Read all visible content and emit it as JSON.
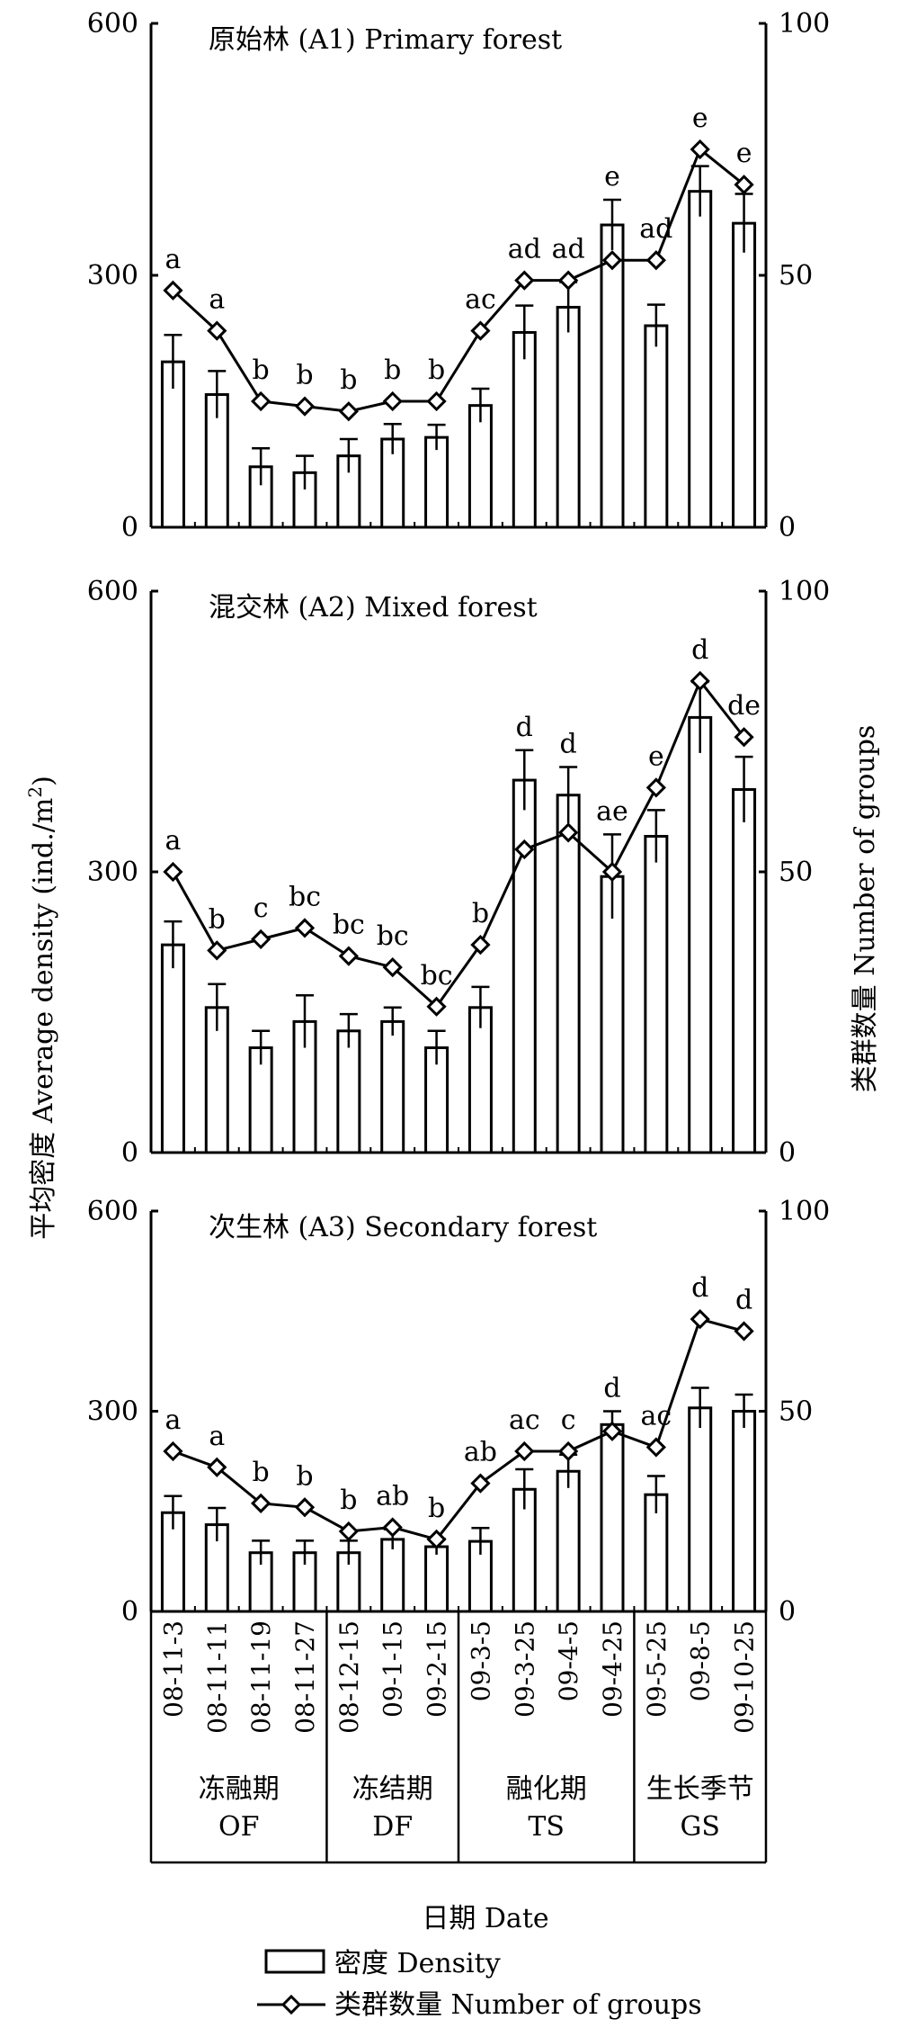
{
  "figure": {
    "left_axis_label": "平均密度 Average density (ind./m",
    "left_axis_label_sup": "2",
    "left_axis_label_end": ")",
    "right_axis_label": "类群数量 Number of groups",
    "x_axis_label": "日期 Date",
    "legend": {
      "density": "密度 Density",
      "groups": "类群数量 Number of groups"
    },
    "periods": [
      {
        "cn": "冻融期",
        "en": "OF"
      },
      {
        "cn": "冻结期",
        "en": "DF"
      },
      {
        "cn": "融化期",
        "en": "TS"
      },
      {
        "cn": "生长季节",
        "en": "GS"
      }
    ],
    "period_boundaries": [
      4,
      7,
      11
    ]
  },
  "chart_data": [
    {
      "type": "bar",
      "title": "原始林 (A1) Primary forest",
      "categories": [
        "08-11-3",
        "08-11-11",
        "08-11-19",
        "08-11-27",
        "08-12-15",
        "09-1-15",
        "09-2-15",
        "09-3-5",
        "09-3-25",
        "09-4-5",
        "09-4-25",
        "09-5-25",
        "09-8-5",
        "09-10-25"
      ],
      "left_ylim": [
        0,
        600
      ],
      "left_ticks": [
        "0",
        "300",
        "600"
      ],
      "right_ylim": [
        0,
        100
      ],
      "right_ticks": [
        "0",
        "50",
        "100"
      ],
      "series": [
        {
          "name": "密度 Density",
          "axis": "left",
          "kind": "bar",
          "values": [
            197,
            158,
            72,
            65,
            85,
            105,
            107,
            145,
            232,
            262,
            360,
            240,
            400,
            362
          ],
          "errors": [
            32,
            28,
            22,
            20,
            20,
            18,
            15,
            20,
            32,
            30,
            30,
            25,
            30,
            35
          ]
        },
        {
          "name": "类群数量 Number of groups",
          "axis": "right",
          "kind": "line",
          "values": [
            47,
            39,
            25,
            24,
            23,
            25,
            25,
            39,
            49,
            49,
            53,
            53,
            75,
            68
          ]
        }
      ],
      "letters": [
        "a",
        "a",
        "b",
        "b",
        "b",
        "b",
        "b",
        "ac",
        "ad",
        "ad",
        "e",
        "ad",
        "e",
        "e"
      ]
    },
    {
      "type": "bar",
      "title": "混交林 (A2) Mixed forest",
      "categories": [
        "08-11-3",
        "08-11-11",
        "08-11-19",
        "08-11-27",
        "08-12-15",
        "09-1-15",
        "09-2-15",
        "09-3-5",
        "09-3-25",
        "09-4-5",
        "09-4-25",
        "09-5-25",
        "09-8-5",
        "09-10-25"
      ],
      "left_ylim": [
        0,
        600
      ],
      "left_ticks": [
        "0",
        "300",
        "600"
      ],
      "right_ylim": [
        0,
        100
      ],
      "right_ticks": [
        "0",
        "50",
        "100"
      ],
      "series": [
        {
          "name": "密度 Density",
          "axis": "left",
          "kind": "bar",
          "values": [
            222,
            155,
            112,
            140,
            130,
            140,
            112,
            155,
            398,
            382,
            295,
            338,
            465,
            388
          ],
          "errors": [
            25,
            25,
            18,
            28,
            18,
            15,
            18,
            22,
            32,
            30,
            45,
            28,
            38,
            35
          ]
        },
        {
          "name": "类群数量 Number of groups",
          "axis": "right",
          "kind": "line",
          "values": [
            50,
            36,
            38,
            40,
            35,
            33,
            26,
            37,
            54,
            57,
            50,
            65,
            84,
            74
          ]
        }
      ],
      "letters": [
        "a",
        "b",
        "c",
        "bc",
        "bc",
        "bc",
        "bc",
        "b",
        "d",
        "d",
        "ae",
        "e",
        "d",
        "de"
      ]
    },
    {
      "type": "bar",
      "title": "次生林 (A3) Secondary forest",
      "categories": [
        "08-11-3",
        "08-11-11",
        "08-11-19",
        "08-11-27",
        "08-12-15",
        "09-1-15",
        "09-2-15",
        "09-3-5",
        "09-3-25",
        "09-4-5",
        "09-4-25",
        "09-5-25",
        "09-8-5",
        "09-10-25"
      ],
      "left_ylim": [
        0,
        600
      ],
      "left_ticks": [
        "0",
        "300",
        "600"
      ],
      "right_ylim": [
        0,
        100
      ],
      "right_ticks": [
        "0",
        "50",
        "100"
      ],
      "series": [
        {
          "name": "密度 Density",
          "axis": "left",
          "kind": "bar",
          "values": [
            148,
            130,
            88,
            88,
            88,
            108,
            97,
            105,
            183,
            210,
            280,
            175,
            305,
            300
          ],
          "errors": [
            25,
            25,
            18,
            18,
            18,
            15,
            12,
            20,
            30,
            25,
            20,
            28,
            30,
            25
          ]
        },
        {
          "name": "类群数量 Number of groups",
          "axis": "right",
          "kind": "line",
          "values": [
            40,
            36,
            27,
            26,
            20,
            21,
            18,
            32,
            40,
            40,
            45,
            41,
            73,
            70
          ]
        }
      ],
      "letters": [
        "a",
        "a",
        "b",
        "b",
        "b",
        "ab",
        "b",
        "ab",
        "ac",
        "c",
        "d",
        "ac",
        "d",
        "d"
      ]
    }
  ]
}
